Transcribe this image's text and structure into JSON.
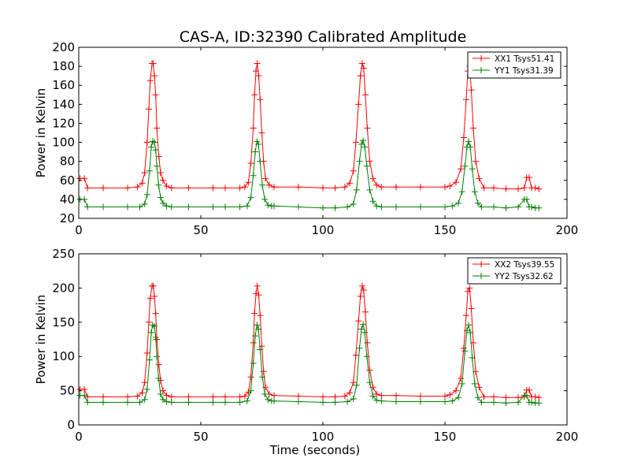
{
  "chart_data": [
    {
      "type": "line",
      "title": "CAS-A, ID:32390 Calibrated Amplitude",
      "xlabel": "",
      "ylabel": "Power in Kelvin",
      "xlim": [
        0,
        200
      ],
      "ylim": [
        20,
        200
      ],
      "xticks": [
        "0",
        "50",
        "100",
        "150",
        "200"
      ],
      "yticks": [
        "20",
        "40",
        "60",
        "80",
        "100",
        "120",
        "140",
        "160",
        "180",
        "200"
      ],
      "legend_position": "top-right",
      "series": [
        {
          "name": "XX1 Tsys51.41",
          "color": "#ff0000",
          "marker": "plus",
          "x": [
            0.5,
            2.3,
            3.6,
            10,
            20,
            24,
            26,
            27,
            28,
            28.7,
            29.3,
            30,
            30.5,
            31,
            31.5,
            32,
            32.8,
            33.5,
            34.5,
            36,
            38,
            45,
            55,
            60,
            66,
            68,
            69.5,
            70.5,
            71.5,
            72,
            72.6,
            73.1,
            73.7,
            74.3,
            75,
            75.7,
            76.5,
            78,
            80,
            90,
            100,
            105,
            109,
            111,
            112.5,
            113.5,
            114.6,
            115.4,
            116.1,
            116.7,
            117.4,
            118.2,
            119.2,
            120.5,
            122,
            124,
            130,
            140,
            150,
            152,
            154.5,
            156.5,
            157.7,
            158.7,
            159.4,
            160.1,
            160.8,
            161.6,
            162.6,
            164,
            166,
            170,
            175,
            180,
            182.5,
            183.5,
            184.5,
            185.5,
            187,
            188.5
          ],
          "values": [
            62,
            62,
            52,
            52,
            52,
            53,
            57,
            68,
            100,
            135,
            165,
            183,
            183,
            170,
            150,
            115,
            85,
            68,
            60,
            54,
            52,
            52,
            52,
            52,
            52,
            53,
            58,
            78,
            115,
            150,
            175,
            183,
            170,
            145,
            110,
            80,
            62,
            55,
            53,
            53,
            52,
            52,
            53,
            57,
            70,
            100,
            140,
            170,
            183,
            178,
            150,
            115,
            80,
            62,
            55,
            53,
            53,
            53,
            53,
            54,
            58,
            72,
            105,
            145,
            175,
            180,
            155,
            115,
            80,
            62,
            52,
            52,
            51,
            51,
            52,
            63,
            63,
            52,
            52,
            51
          ]
        },
        {
          "name": "YY1 Tsys31.39",
          "color": "#008000",
          "marker": "plus",
          "x": [
            0.5,
            2.3,
            3.6,
            10,
            20,
            25,
            27,
            28,
            29,
            29.7,
            30.3,
            31,
            31.5,
            32,
            32.7,
            33.5,
            34.5,
            36,
            38,
            45,
            55,
            60,
            66,
            69,
            70.5,
            71.5,
            72.3,
            73,
            73.6,
            74.3,
            75.2,
            76.2,
            77.5,
            79,
            80,
            90,
            100,
            105,
            110,
            112.5,
            113.8,
            115,
            115.8,
            116.5,
            117.2,
            118,
            119.2,
            120.5,
            122,
            124,
            130,
            140,
            150,
            153,
            155.5,
            157,
            158.2,
            159,
            159.7,
            160.4,
            161.2,
            162.2,
            163.5,
            165,
            170,
            175,
            180,
            182.5,
            183.5,
            184.5,
            185.5,
            187,
            188.5
          ],
          "values": [
            40,
            40,
            32,
            32,
            32,
            32,
            35,
            45,
            70,
            95,
            101,
            100,
            92,
            75,
            55,
            42,
            36,
            33,
            32,
            32,
            32,
            32,
            32,
            33,
            42,
            65,
            90,
            101,
            98,
            80,
            55,
            40,
            34,
            33,
            33,
            32,
            31,
            31,
            32,
            35,
            50,
            80,
            98,
            102,
            95,
            75,
            50,
            38,
            33,
            32,
            32,
            32,
            32,
            33,
            36,
            48,
            75,
            95,
            101,
            95,
            72,
            48,
            36,
            32,
            32,
            31,
            32,
            40,
            40,
            32,
            32,
            31,
            31
          ]
        }
      ]
    },
    {
      "type": "line",
      "title": "",
      "xlabel": "Time (seconds)",
      "ylabel": "Power in Kelvin",
      "xlim": [
        0,
        200
      ],
      "ylim": [
        0,
        250
      ],
      "xticks": [
        "0",
        "50",
        "100",
        "150",
        "200"
      ],
      "yticks": [
        "0",
        "50",
        "100",
        "150",
        "200",
        "250"
      ],
      "legend_position": "top-right",
      "series": [
        {
          "name": "XX2 Tsys39.55",
          "color": "#ff0000",
          "marker": "plus",
          "x": [
            0.5,
            2.3,
            3.6,
            10,
            20,
            24,
            26,
            27,
            28,
            28.7,
            29.3,
            30,
            30.5,
            31,
            31.5,
            32,
            32.8,
            33.5,
            34.5,
            36,
            38,
            45,
            55,
            60,
            66,
            68,
            69.5,
            70.5,
            71.5,
            72,
            72.6,
            73.1,
            73.7,
            74.3,
            75,
            75.7,
            76.5,
            78,
            80,
            90,
            100,
            105,
            109,
            111,
            112.5,
            113.5,
            114.6,
            115.4,
            116.1,
            116.7,
            117.4,
            118.2,
            119.2,
            120.5,
            122,
            124,
            130,
            140,
            150,
            152,
            154.5,
            156.5,
            157.7,
            158.7,
            159.4,
            160.1,
            160.8,
            161.6,
            162.6,
            164,
            166,
            170,
            175,
            180,
            182.5,
            183.5,
            184.5,
            185.5,
            187,
            188.5
          ],
          "values": [
            52,
            52,
            41,
            41,
            41,
            42,
            47,
            62,
            105,
            150,
            185,
            203,
            203,
            188,
            163,
            125,
            88,
            65,
            50,
            43,
            41,
            41,
            41,
            41,
            41,
            42,
            48,
            70,
            120,
            163,
            192,
            203,
            190,
            160,
            115,
            78,
            55,
            45,
            43,
            42,
            41,
            41,
            42,
            47,
            62,
            102,
            152,
            188,
            203,
            197,
            165,
            120,
            80,
            55,
            45,
            43,
            43,
            42,
            42,
            44,
            50,
            68,
            112,
            160,
            195,
            200,
            170,
            120,
            78,
            55,
            41,
            41,
            40,
            40,
            41,
            51,
            51,
            41,
            41,
            40
          ]
        },
        {
          "name": "YY2 Tsys32.62",
          "color": "#008000",
          "marker": "plus",
          "x": [
            0.5,
            2.3,
            3.6,
            10,
            20,
            25,
            27,
            28,
            29,
            29.7,
            30.3,
            31,
            31.5,
            32,
            32.7,
            33.5,
            34.5,
            36,
            38,
            45,
            55,
            60,
            66,
            69,
            70.5,
            71.5,
            72.3,
            73,
            73.6,
            74.3,
            75.2,
            76.2,
            77.5,
            79,
            80,
            90,
            100,
            105,
            110,
            112.5,
            113.8,
            115,
            115.8,
            116.5,
            117.2,
            118,
            119.2,
            120.5,
            122,
            124,
            130,
            140,
            150,
            153,
            155.5,
            157,
            158.2,
            159,
            159.7,
            160.4,
            161.2,
            162.2,
            163.5,
            165,
            170,
            175,
            180,
            182.5,
            183.5,
            184.5,
            185.5,
            187,
            188.5
          ],
          "values": [
            43,
            43,
            33,
            33,
            33,
            33,
            37,
            52,
            95,
            135,
            146,
            144,
            128,
            100,
            68,
            45,
            37,
            34,
            33,
            33,
            33,
            33,
            33,
            35,
            50,
            90,
            130,
            146,
            140,
            110,
            70,
            45,
            37,
            35,
            35,
            34,
            33,
            33,
            34,
            38,
            58,
            112,
            140,
            147,
            135,
            100,
            62,
            42,
            36,
            35,
            34,
            34,
            34,
            35,
            40,
            60,
            108,
            138,
            146,
            135,
            98,
            60,
            40,
            33,
            33,
            32,
            33,
            43,
            43,
            33,
            33,
            32,
            32
          ]
        }
      ]
    }
  ]
}
